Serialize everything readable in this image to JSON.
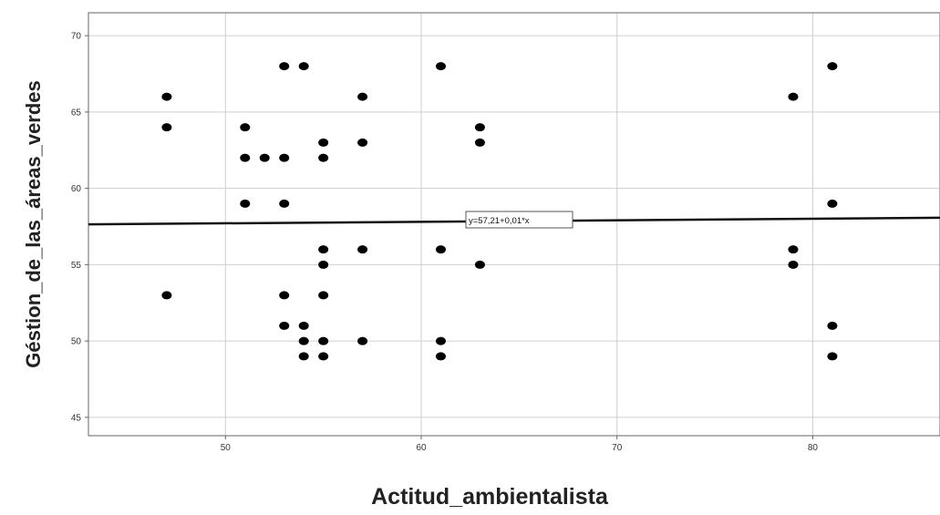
{
  "chart_data": {
    "type": "scatter",
    "title": "",
    "xlabel": "Actitud_ambientalista",
    "ylabel": "Géstion_de_las_áreas_verdes",
    "xlim": [
      43,
      86.5
    ],
    "ylim": [
      43.8,
      71.5
    ],
    "x_ticks": [
      50,
      60,
      70,
      80
    ],
    "y_ticks": [
      45,
      50,
      55,
      60,
      65,
      70
    ],
    "grid": true,
    "series": [
      {
        "points": [
          [
            47,
            66
          ],
          [
            47,
            64
          ],
          [
            47,
            53
          ],
          [
            51,
            64
          ],
          [
            51,
            62
          ],
          [
            51,
            59
          ],
          [
            52,
            62
          ],
          [
            53,
            68
          ],
          [
            53,
            62
          ],
          [
            53,
            59
          ],
          [
            53,
            53
          ],
          [
            53,
            51
          ],
          [
            54,
            68
          ],
          [
            54,
            51
          ],
          [
            54,
            50
          ],
          [
            54,
            49
          ],
          [
            55,
            63
          ],
          [
            55,
            62
          ],
          [
            55,
            56
          ],
          [
            55,
            55
          ],
          [
            55,
            53
          ],
          [
            55,
            50
          ],
          [
            55,
            49
          ],
          [
            57,
            66
          ],
          [
            57,
            63
          ],
          [
            57,
            56
          ],
          [
            57,
            50
          ],
          [
            61,
            68
          ],
          [
            61,
            56
          ],
          [
            61,
            50
          ],
          [
            61,
            49
          ],
          [
            63,
            64
          ],
          [
            63,
            63
          ],
          [
            63,
            55
          ],
          [
            79,
            66
          ],
          [
            79,
            56
          ],
          [
            79,
            55
          ],
          [
            81,
            68
          ],
          [
            81,
            59
          ],
          [
            81,
            51
          ],
          [
            81,
            49
          ]
        ]
      }
    ],
    "fit_line": {
      "label": "y=57,21+0,01*x",
      "intercept": 57.21,
      "slope": 0.01
    }
  }
}
